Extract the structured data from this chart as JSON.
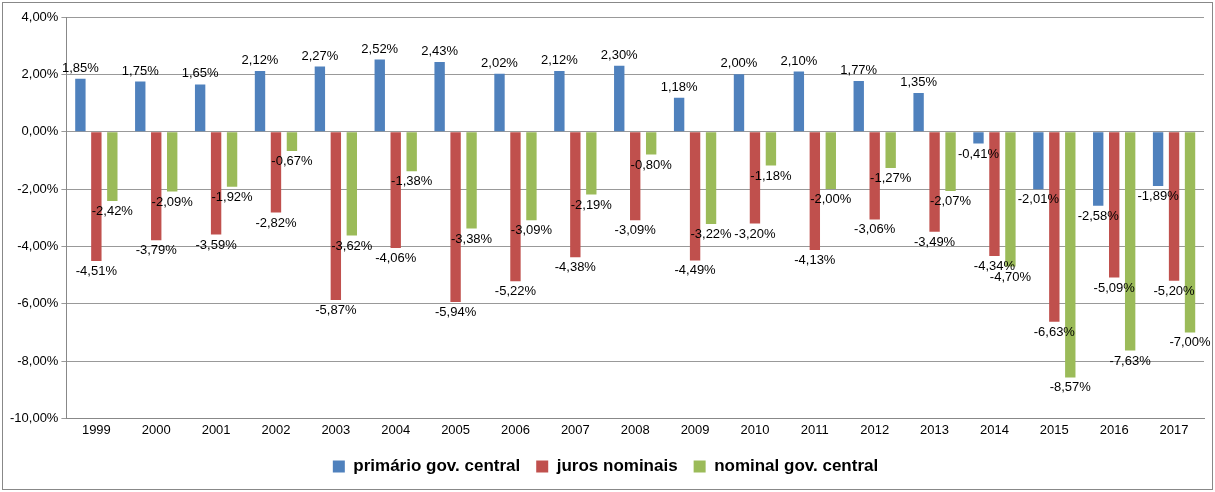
{
  "chart_data": {
    "type": "bar",
    "categories": [
      "1999",
      "2000",
      "2001",
      "2002",
      "2003",
      "2004",
      "2005",
      "2006",
      "2007",
      "2008",
      "2009",
      "2010",
      "2011",
      "2012",
      "2013",
      "2014",
      "2015",
      "2016",
      "2017"
    ],
    "series": [
      {
        "name": "primário gov. central",
        "color": "#4f81bd",
        "values": [
          1.85,
          1.75,
          1.65,
          2.12,
          2.27,
          2.52,
          2.43,
          2.02,
          2.12,
          2.3,
          1.18,
          2.0,
          2.1,
          1.77,
          1.35,
          -0.41,
          -2.01,
          -2.58,
          -1.89
        ],
        "value_labels": [
          "1,85%",
          "1,75%",
          "1,65%",
          "2,12%",
          "2,27%",
          "2,52%",
          "2,43%",
          "2,02%",
          "2,12%",
          "2,30%",
          "1,18%",
          "2,00%",
          "2,10%",
          "1,77%",
          "1,35%",
          "-0,41%",
          "-2,01%",
          "-2,58%",
          "-1,89%"
        ]
      },
      {
        "name": "juros nominais",
        "color": "#c0504d",
        "values": [
          -4.51,
          -3.79,
          -3.59,
          -2.82,
          -5.87,
          -4.06,
          -5.94,
          -5.22,
          -4.38,
          -3.09,
          -4.49,
          -3.2,
          -4.13,
          -3.06,
          -3.49,
          -4.34,
          -6.63,
          -5.09,
          -5.2
        ],
        "value_labels": [
          "-4,51%",
          "-3,79%",
          "-3,59%",
          "-2,82%",
          "-5,87%",
          "-4,06%",
          "-5,94%",
          "-5,22%",
          "-4,38%",
          "-3,09%",
          "-4,49%",
          "-3,20%",
          "-4,13%",
          "-3,06%",
          "-3,49%",
          "-4,34%",
          "-6,63%",
          "-5,09%",
          "-5,20%"
        ]
      },
      {
        "name": "nominal gov. central",
        "color": "#9bbb59",
        "values": [
          -2.42,
          -2.09,
          -1.92,
          -0.67,
          -3.62,
          -1.38,
          -3.38,
          -3.09,
          -2.19,
          -0.8,
          -3.22,
          -1.18,
          -2.0,
          -1.27,
          -2.07,
          -4.7,
          -8.57,
          -7.63,
          -7.0
        ],
        "value_labels": [
          "-2,42%",
          "-2,09%",
          "-1,92%",
          "-0,67%",
          "-3,62%",
          "-1,38%",
          "-3,38%",
          "-3,09%",
          "-2,19%",
          "-0,80%",
          "-3,22%",
          "-1,18%",
          "-2,00%",
          "-1,27%",
          "-2,07%",
          "-4,70%",
          "-8,57%",
          "-7,63%",
          "-7,00%"
        ]
      }
    ],
    "ylim": [
      -10,
      4
    ],
    "yticks": [
      {
        "value": -10,
        "label": "-10,00%"
      },
      {
        "value": -8,
        "label": "-8,00%"
      },
      {
        "value": -6,
        "label": "-6,00%"
      },
      {
        "value": -4,
        "label": "-4,00%"
      },
      {
        "value": -2,
        "label": "-2,00%"
      },
      {
        "value": 0,
        "label": "0,00%"
      },
      {
        "value": 2,
        "label": "2,00%"
      },
      {
        "value": 4,
        "label": "4,00%"
      }
    ],
    "grid": "y",
    "legend": "bottom"
  }
}
